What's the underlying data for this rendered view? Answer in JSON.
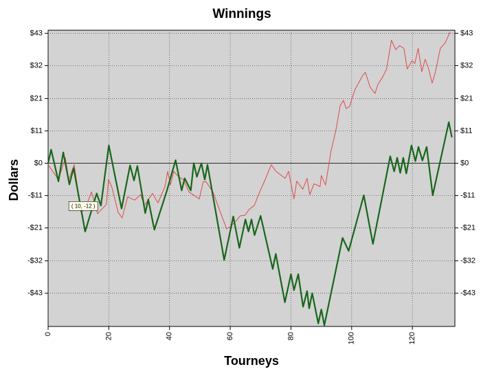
{
  "chart_data": {
    "type": "line",
    "title": "Winnings",
    "x_label": "Tourneys",
    "y_label": "Dollars",
    "annotation": "( 10, -12 )",
    "xlim": [
      0,
      134
    ],
    "xticks": [
      0,
      20,
      40,
      60,
      80,
      100,
      120
    ],
    "ylim": [
      -54,
      44
    ],
    "yticks": [
      {
        "value": 43,
        "label": "$43"
      },
      {
        "value": 32.3,
        "label": "$32"
      },
      {
        "value": 21.4,
        "label": "$21"
      },
      {
        "value": 10.7,
        "label": "$11"
      },
      {
        "value": 0,
        "label": "$0"
      },
      {
        "value": -10.7,
        "label": "-$11"
      },
      {
        "value": -21.4,
        "label": "-$21"
      },
      {
        "value": -32.3,
        "label": "-$32"
      },
      {
        "value": -43,
        "label": "-$43"
      }
    ],
    "grid": true,
    "series": [
      {
        "color": "#e04848",
        "x": [
          0,
          3.4,
          5.7,
          6.8,
          8.6,
          10.9,
          12.4,
          14.3,
          16.3,
          19.2,
          19.9,
          21,
          23.1,
          24.4,
          26.2,
          28.5,
          30.5,
          31.7,
          34.4,
          36.2,
          38.5,
          39.4,
          40.3,
          41.4,
          43,
          44.6,
          46.4,
          49.8,
          51.1,
          52,
          54.3,
          56.6,
          58.8,
          60.2,
          62,
          63.3,
          64.9,
          66.1,
          67.9,
          69.7,
          71.5,
          73.5,
          75.1,
          76.9,
          78.1,
          79.2,
          81,
          81.9,
          83.9,
          85.3,
          86.2,
          87.6,
          89.6,
          90,
          91.4,
          93.2,
          94.8,
          96.2,
          97.3,
          98.2,
          99.3,
          101.1,
          103.6,
          104.5,
          106.1,
          107.7,
          108.6,
          110.2,
          111.5,
          113.1,
          114.5,
          115.8,
          117.2,
          118.3,
          119.9,
          120.8,
          121.9,
          123.1,
          124.2,
          125.3,
          126.5,
          127.6,
          129.2,
          130.8,
          132.4
        ],
        "values": [
          -0.5,
          -5.4,
          1.8,
          -5.4,
          -0.5,
          -16.3,
          -14.5,
          -9.5,
          -16.7,
          -13.6,
          -5.4,
          -7.9,
          -16.3,
          -18.1,
          -11.1,
          -12.2,
          -10.4,
          -14,
          -10,
          -13.1,
          -7.7,
          -2.7,
          -7.2,
          -2.7,
          -4.5,
          -5.4,
          -9.5,
          -11.8,
          -6.1,
          -6.1,
          -9.5,
          -15.8,
          -21.7,
          -20.8,
          -19,
          -17.4,
          -17.2,
          -15.4,
          -14,
          -9.5,
          -5.4,
          -0.5,
          -2.7,
          -4.1,
          -5,
          -2.7,
          -11.8,
          -5.9,
          -8.6,
          -5,
          -10.4,
          -6.8,
          -7.7,
          -4.1,
          -7.2,
          4.1,
          10.9,
          19,
          20.8,
          18.1,
          18.8,
          24.4,
          29,
          30.1,
          25.1,
          23.1,
          26,
          28.5,
          31.2,
          40.7,
          37.6,
          38.9,
          38,
          31.2,
          33.9,
          33,
          38,
          30.3,
          34.4,
          31.4,
          26.5,
          30.3,
          38,
          39.8,
          43.4
        ]
      },
      {
        "color": "#17661a",
        "x": [
          0,
          1,
          3.4,
          5,
          7,
          8.4,
          12.2,
          16,
          17.4,
          20,
          24.2,
          27,
          28.3,
          29.4,
          32,
          33,
          35,
          39,
          42,
          44,
          45,
          47,
          48,
          49,
          50.5,
          51.6,
          52.5,
          58,
          61,
          63,
          65,
          66,
          67,
          68,
          70,
          74,
          75,
          78,
          80,
          81,
          82.4,
          84,
          85.3,
          86,
          87,
          89,
          90,
          91,
          97,
          99,
          104,
          107,
          112.7,
          114,
          115,
          116,
          117,
          118,
          119.7,
          121,
          122,
          123.3,
          124.7,
          126.7,
          132,
          133
        ],
        "values": [
          0,
          4.5,
          -6,
          3.6,
          -7,
          -1.6,
          -22.6,
          -10,
          -14,
          5.9,
          -15,
          -0.7,
          -5.7,
          -0.9,
          -16.5,
          -12,
          -22,
          -9.5,
          1,
          -9,
          -5,
          -9,
          0,
          -4.5,
          0,
          -5.4,
          -0.5,
          -32,
          -17.6,
          -28,
          -18.6,
          -22.6,
          -18.6,
          -23.8,
          -17.4,
          -35,
          -30,
          -46,
          -36.7,
          -42,
          -36.7,
          -47.5,
          -42.3,
          -48,
          -43,
          -53,
          -48.4,
          -53.6,
          -24.7,
          -29,
          -10.6,
          -26.7,
          2.3,
          -2.7,
          1.8,
          -3.2,
          1.8,
          -3.4,
          5.9,
          0.7,
          5.4,
          0.9,
          5.4,
          -10.6,
          13.6,
          8.6
        ]
      }
    ]
  }
}
